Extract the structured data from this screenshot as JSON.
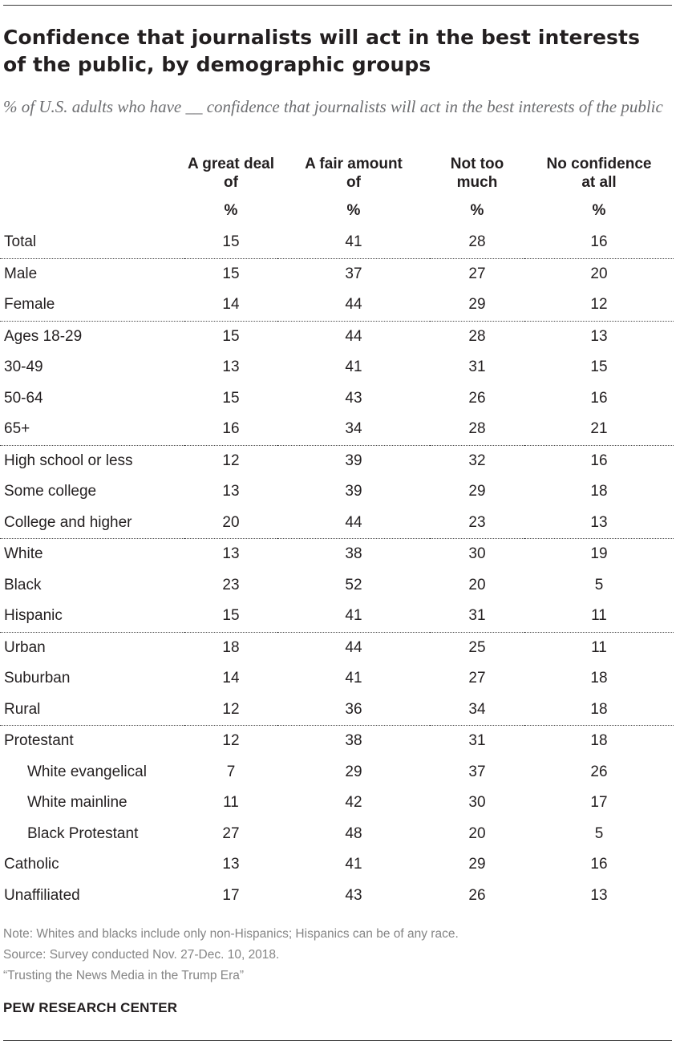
{
  "title": "Confidence that journalists will act in the best interests of the public, by demographic groups",
  "subtitle": "% of U.S. adults who have __ confidence that journalists will act in the best interests of the public",
  "chart_data": {
    "type": "table",
    "columns": [
      "A great deal of",
      "A fair amount of",
      "Not too much",
      "No confidence at all"
    ],
    "unit": "%",
    "rows": [
      {
        "label": "Total",
        "values": [
          15,
          41,
          28,
          16
        ]
      },
      {
        "label": "Male",
        "values": [
          15,
          37,
          27,
          20
        ]
      },
      {
        "label": "Female",
        "values": [
          14,
          44,
          29,
          12
        ]
      },
      {
        "label": "Ages 18-29",
        "values": [
          15,
          44,
          28,
          13
        ]
      },
      {
        "label": "30-49",
        "values": [
          13,
          41,
          31,
          15
        ]
      },
      {
        "label": "50-64",
        "values": [
          15,
          43,
          26,
          16
        ]
      },
      {
        "label": "65+",
        "values": [
          16,
          34,
          28,
          21
        ]
      },
      {
        "label": "High school or less",
        "values": [
          12,
          39,
          32,
          16
        ]
      },
      {
        "label": "Some college",
        "values": [
          13,
          39,
          29,
          18
        ]
      },
      {
        "label": "College and higher",
        "values": [
          20,
          44,
          23,
          13
        ]
      },
      {
        "label": "White",
        "values": [
          13,
          38,
          30,
          19
        ]
      },
      {
        "label": "Black",
        "values": [
          23,
          52,
          20,
          5
        ]
      },
      {
        "label": "Hispanic",
        "values": [
          15,
          41,
          31,
          11
        ]
      },
      {
        "label": "Urban",
        "values": [
          18,
          44,
          25,
          11
        ]
      },
      {
        "label": "Suburban",
        "values": [
          14,
          41,
          27,
          18
        ]
      },
      {
        "label": "Rural",
        "values": [
          12,
          36,
          34,
          18
        ]
      },
      {
        "label": "Protestant",
        "values": [
          12,
          38,
          31,
          18
        ]
      },
      {
        "label": "White evangelical",
        "values": [
          7,
          29,
          37,
          26
        ]
      },
      {
        "label": "White mainline",
        "values": [
          11,
          42,
          30,
          17
        ]
      },
      {
        "label": "Black Protestant",
        "values": [
          27,
          48,
          20,
          5
        ]
      },
      {
        "label": "Catholic",
        "values": [
          13,
          41,
          29,
          16
        ]
      },
      {
        "label": "Unaffiliated",
        "values": [
          17,
          43,
          26,
          13
        ]
      }
    ]
  },
  "header": {
    "col1": [
      "A great deal",
      "of"
    ],
    "col2": [
      "A fair amount",
      "of"
    ],
    "col3": [
      "Not too",
      "much"
    ],
    "col4": [
      "No confidence",
      "at all"
    ],
    "unit": "%"
  },
  "notes": {
    "note": "Note: Whites and blacks include only non-Hispanics; Hispanics can be of any race.",
    "source": "Source: Survey conducted Nov. 27-Dec. 10, 2018.",
    "report": "“Trusting the News Media in the Trump Era”"
  },
  "brand": "PEW RESEARCH CENTER"
}
